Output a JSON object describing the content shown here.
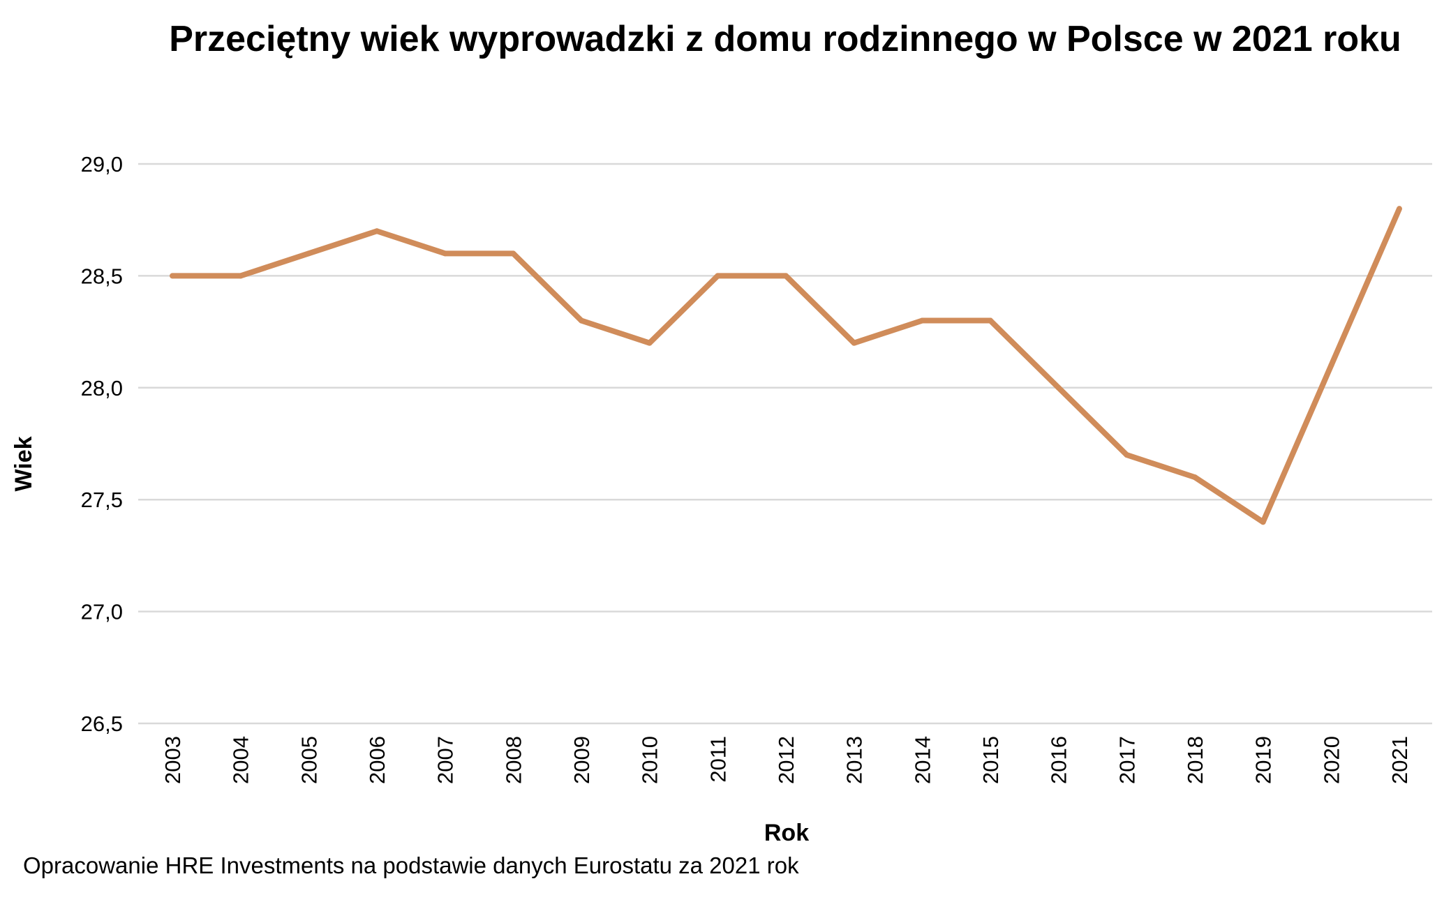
{
  "chart_data": {
    "type": "line",
    "title": "Przeciętny wiek wyprowadzki z domu rodzinnego w Polsce w 2021 roku",
    "xlabel": "Rok",
    "ylabel": "Wiek",
    "categories": [
      "2003",
      "2004",
      "2005",
      "2006",
      "2007",
      "2008",
      "2009",
      "2010",
      "2011",
      "2012",
      "2013",
      "2014",
      "2015",
      "2016",
      "2017",
      "2018",
      "2019",
      "2020",
      "2021"
    ],
    "series": [
      {
        "name": "Wiek",
        "color": "#D08C5A",
        "values": [
          28.5,
          28.5,
          28.6,
          28.7,
          28.6,
          28.6,
          28.3,
          28.2,
          28.5,
          28.5,
          28.2,
          28.3,
          28.3,
          28.0,
          27.7,
          27.6,
          27.4,
          28.1,
          28.8
        ]
      }
    ],
    "ylim": [
      26.5,
      29.0
    ],
    "yticks": [
      "26,5",
      "27,0",
      "27,5",
      "28,0",
      "28,5",
      "29,0"
    ],
    "ytick_values": [
      26.5,
      27.0,
      27.5,
      28.0,
      28.5,
      29.0
    ],
    "grid": true,
    "legend": "none",
    "gridline_color": "#D9D9D9"
  },
  "footnote": "Opracowanie HRE Investments na podstawie danych Eurostatu za 2021 rok"
}
